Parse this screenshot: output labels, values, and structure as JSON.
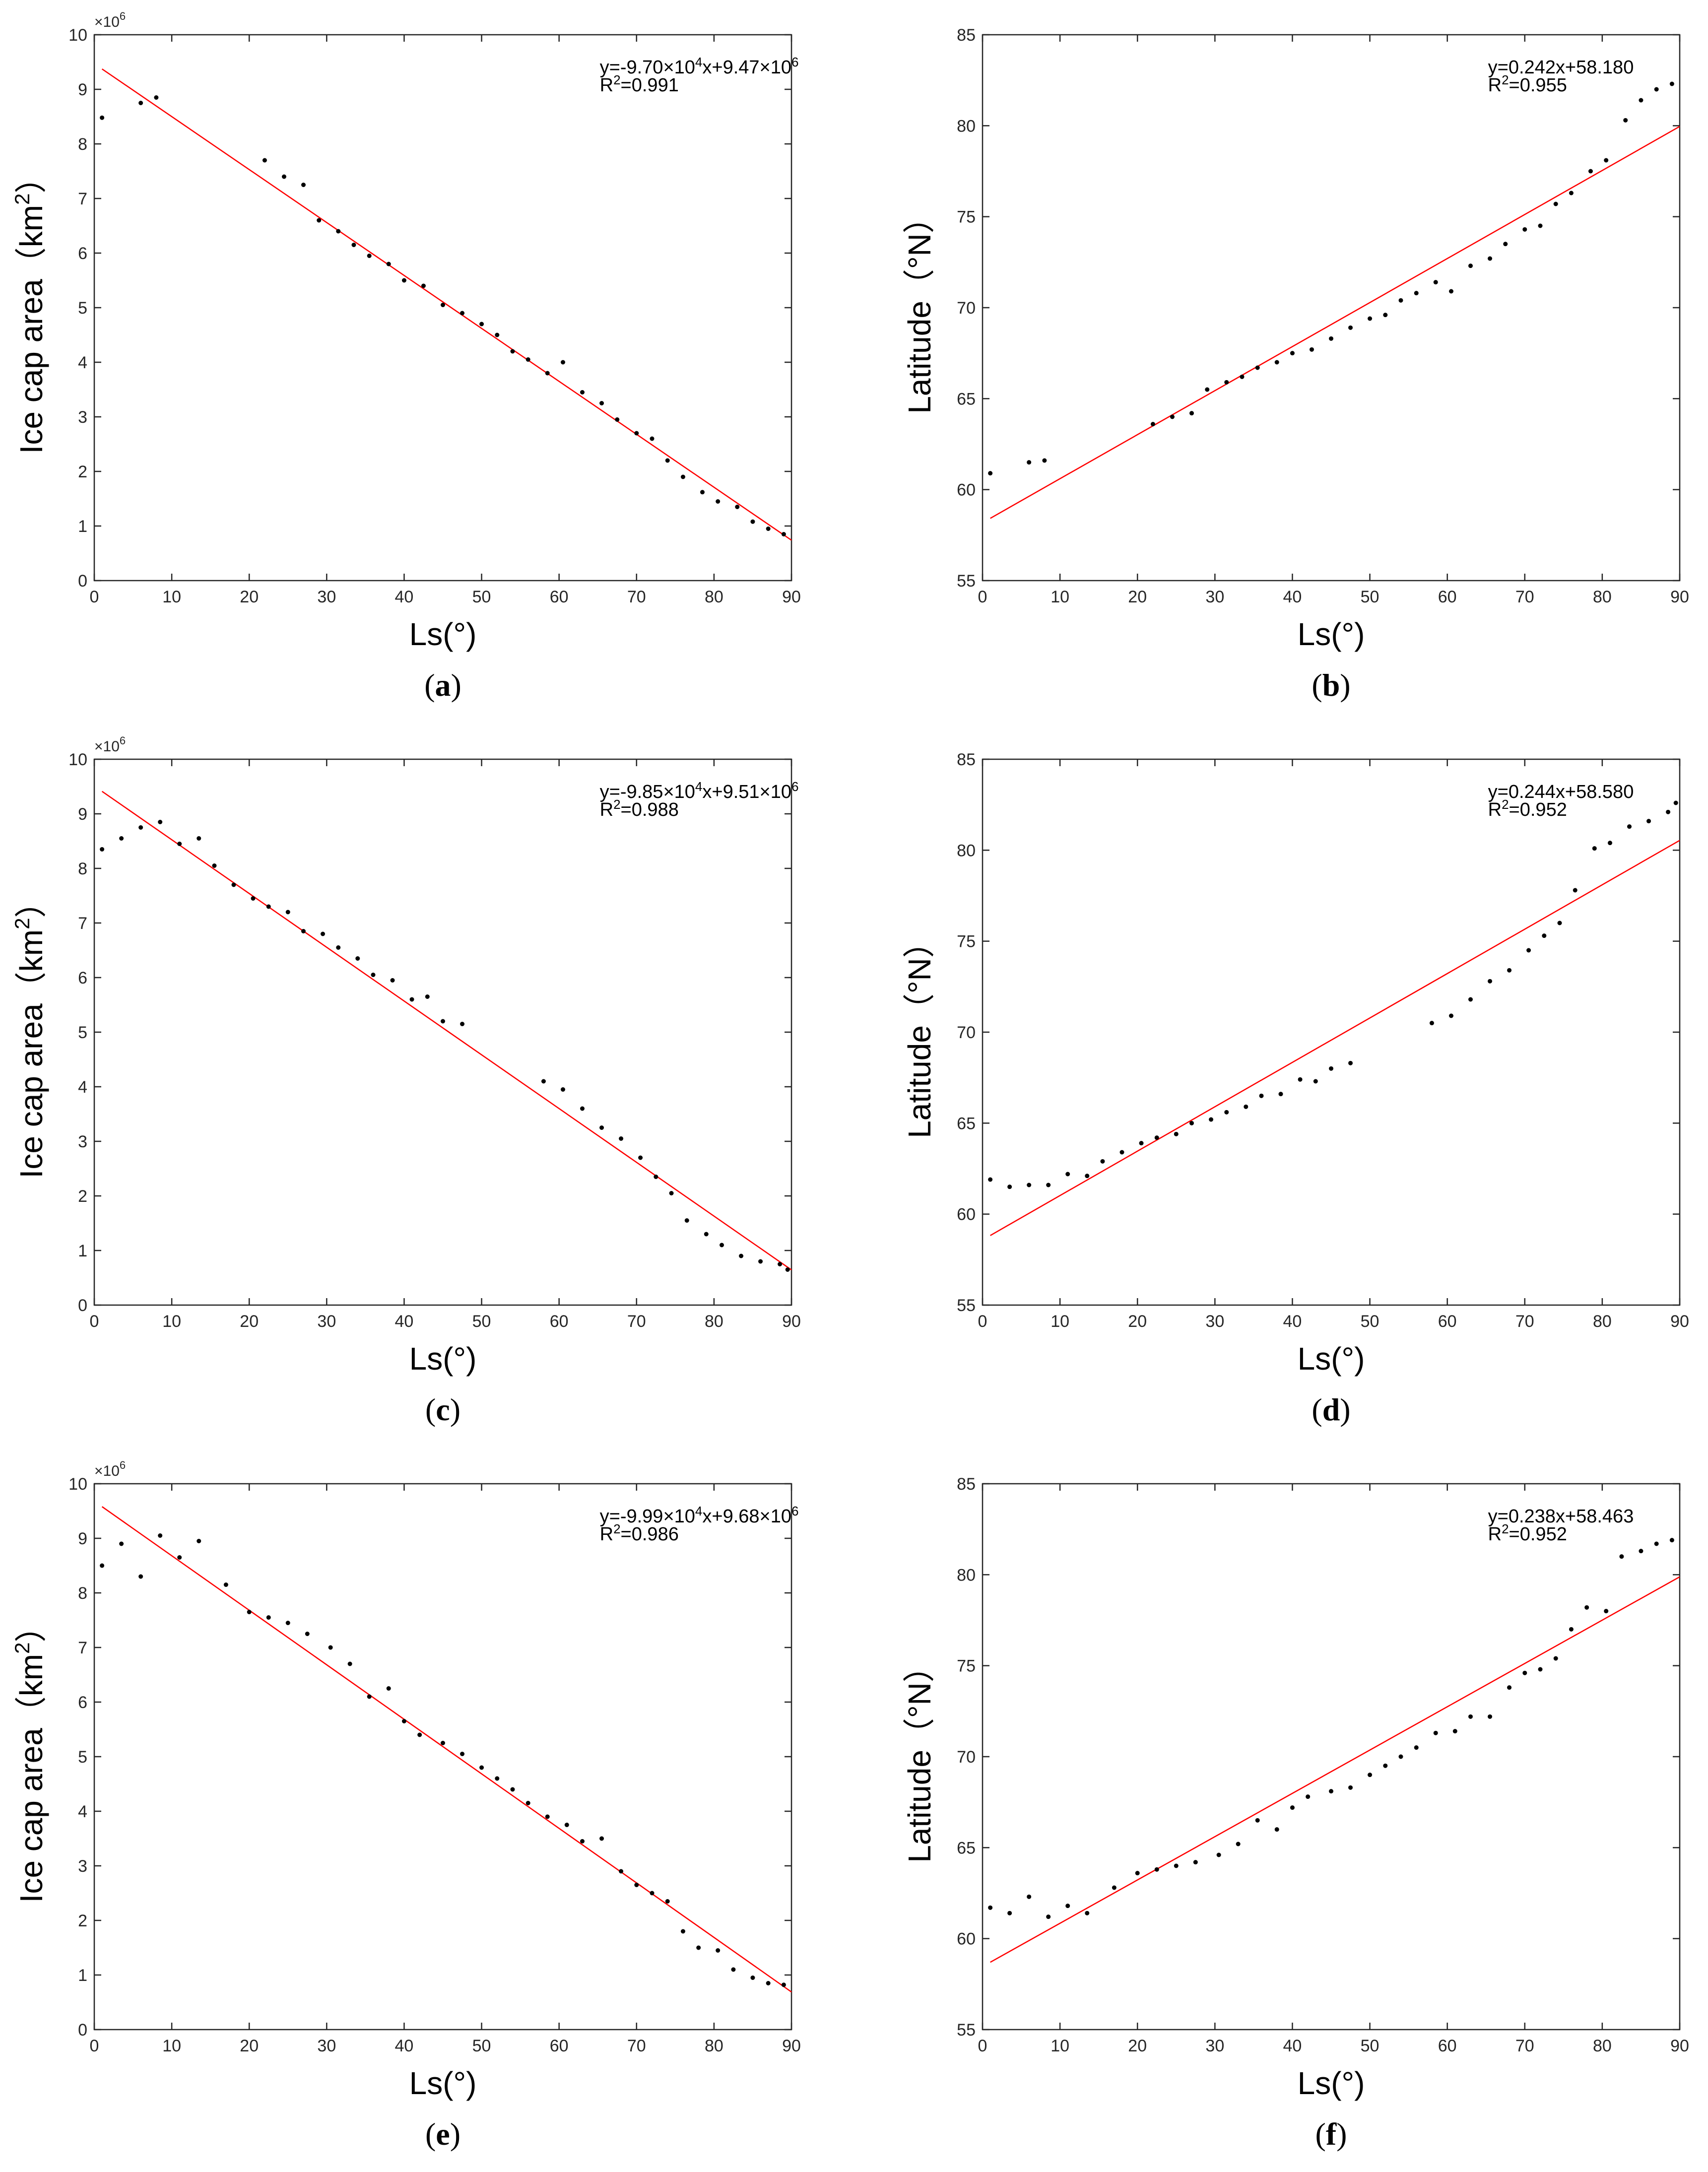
{
  "colors": {
    "fit_line": "#ff0000",
    "points": "#000000",
    "axes": "#262626"
  },
  "chart_data": [
    {
      "type": "scatter",
      "panel": "a",
      "caption": "(a)",
      "caption_open": "(",
      "caption_letter": "a",
      "caption_close": ")",
      "xlabel": "Ls(°)",
      "ylabel": "Ice cap area（km²）",
      "ylabel_main": "Ice cap area（km",
      "ylabel_sup": "2",
      "ylabel_end": "）",
      "xlim": [
        0,
        90
      ],
      "ylim": [
        0,
        10
      ],
      "xticks": [
        0,
        10,
        20,
        30,
        40,
        50,
        60,
        70,
        80,
        90
      ],
      "yticks": [
        0,
        1,
        2,
        3,
        4,
        5,
        6,
        7,
        8,
        9,
        10
      ],
      "y_multiplier": "×10⁶",
      "y_multiplier_base": "×10",
      "y_multiplier_exp": "6",
      "equation": "y=-9.70×10⁴x+9.47×10⁶",
      "eq_line1_parts": [
        "y=-9.70",
        "×",
        "10",
        "4",
        "x+9.47",
        "×",
        "10",
        "6"
      ],
      "r_squared": "R²=0.991",
      "r2_parts": [
        "R",
        "2",
        "=0.991"
      ],
      "fit": {
        "slope": -0.097,
        "intercept": 9.47
      },
      "x": [
        1,
        6,
        8,
        22,
        24.5,
        27,
        29,
        31.5,
        33.5,
        35.5,
        38,
        40,
        42.5,
        45,
        47.5,
        50,
        52,
        54,
        56,
        58.5,
        60.5,
        63,
        65.5,
        67.5,
        70,
        72,
        74,
        76,
        78.5,
        80.5,
        83,
        85,
        87,
        89
      ],
      "y": [
        8.48,
        8.75,
        8.85,
        7.7,
        7.4,
        7.25,
        6.6,
        6.4,
        6.15,
        5.95,
        5.8,
        5.5,
        5.4,
        5.05,
        4.9,
        4.7,
        4.5,
        4.2,
        4.05,
        3.8,
        4.0,
        3.45,
        3.25,
        2.95,
        2.7,
        2.6,
        2.2,
        1.9,
        1.62,
        1.45,
        1.35,
        1.08,
        0.95,
        0.85
      ]
    },
    {
      "type": "scatter",
      "panel": "b",
      "caption": "(b)",
      "caption_open": "(",
      "caption_letter": "b",
      "caption_close": ")",
      "xlabel": "Ls(°)",
      "ylabel": "Latitude（°N）",
      "xlim": [
        0,
        90
      ],
      "ylim": [
        55,
        85
      ],
      "xticks": [
        0,
        10,
        20,
        30,
        40,
        50,
        60,
        70,
        80,
        90
      ],
      "yticks": [
        55,
        60,
        65,
        70,
        75,
        80,
        85
      ],
      "equation": "y=0.242x+58.180",
      "r_squared": "R²=0.955",
      "r2_parts": [
        "R",
        "2",
        "=0.955"
      ],
      "fit": {
        "slope": 0.242,
        "intercept": 58.18
      },
      "x": [
        1,
        6,
        8,
        22,
        24.5,
        27,
        29,
        31.5,
        33.5,
        35.5,
        38,
        40,
        42.5,
        45,
        47.5,
        50,
        52,
        54,
        56,
        58.5,
        60.5,
        63,
        65.5,
        67.5,
        70,
        72,
        74,
        76,
        78.5,
        80.5,
        83,
        85,
        87,
        89
      ],
      "y": [
        60.9,
        61.5,
        61.6,
        63.6,
        64.0,
        64.2,
        65.5,
        65.9,
        66.2,
        66.7,
        67.0,
        67.5,
        67.7,
        68.3,
        68.9,
        69.4,
        69.6,
        70.4,
        70.8,
        71.4,
        70.9,
        72.3,
        72.7,
        73.5,
        74.3,
        74.5,
        75.7,
        76.3,
        77.5,
        78.1,
        80.3,
        81.4,
        82.0,
        82.3
      ]
    },
    {
      "type": "scatter",
      "panel": "c",
      "caption": "(c)",
      "caption_open": "(",
      "caption_letter": "c",
      "caption_close": ")",
      "xlabel": "Ls(°)",
      "ylabel": "Ice cap area（km²）",
      "ylabel_main": "Ice cap area（km",
      "ylabel_sup": "2",
      "ylabel_end": "）",
      "xlim": [
        0,
        90
      ],
      "ylim": [
        0,
        10
      ],
      "xticks": [
        0,
        10,
        20,
        30,
        40,
        50,
        60,
        70,
        80,
        90
      ],
      "yticks": [
        0,
        1,
        2,
        3,
        4,
        5,
        6,
        7,
        8,
        9,
        10
      ],
      "y_multiplier": "×10⁶",
      "y_multiplier_base": "×10",
      "y_multiplier_exp": "6",
      "equation": "y=-9.85×10⁴x+9.51×10⁶",
      "eq_line1_parts": [
        "y=-9.85",
        "×",
        "10",
        "4",
        "x+9.51",
        "×",
        "10",
        "6"
      ],
      "r_squared": "R²=0.988",
      "r2_parts": [
        "R",
        "2",
        "=0.988"
      ],
      "fit": {
        "slope": -0.0985,
        "intercept": 9.51
      },
      "x": [
        1,
        3.5,
        6,
        8.5,
        11,
        13.5,
        15.5,
        18,
        20.5,
        22.5,
        25,
        27,
        29.5,
        31.5,
        34,
        36,
        38.5,
        41,
        43,
        45,
        47.5,
        58,
        60.5,
        63,
        65.5,
        68,
        70.5,
        72.5,
        74.5,
        76.5,
        79,
        81,
        83.5,
        86,
        88.5,
        89.5
      ],
      "y": [
        8.35,
        8.55,
        8.75,
        8.85,
        8.45,
        8.55,
        8.05,
        7.7,
        7.45,
        7.3,
        7.2,
        6.85,
        6.8,
        6.55,
        6.35,
        6.05,
        5.95,
        5.6,
        5.65,
        5.2,
        5.15,
        4.1,
        3.95,
        3.6,
        3.25,
        3.05,
        2.7,
        2.35,
        2.05,
        1.55,
        1.3,
        1.1,
        0.9,
        0.8,
        0.75,
        0.65
      ]
    },
    {
      "type": "scatter",
      "panel": "d",
      "caption": "(d)",
      "caption_open": "(",
      "caption_letter": "d",
      "caption_close": ")",
      "xlabel": "Ls(°)",
      "ylabel": "Latitude（°N）",
      "xlim": [
        0,
        90
      ],
      "ylim": [
        55,
        85
      ],
      "xticks": [
        0,
        10,
        20,
        30,
        40,
        50,
        60,
        70,
        80,
        90
      ],
      "yticks": [
        55,
        60,
        65,
        70,
        75,
        80,
        85
      ],
      "equation": "y=0.244x+58.580",
      "r_squared": "R²=0.952",
      "r2_parts": [
        "R",
        "2",
        "=0.952"
      ],
      "fit": {
        "slope": 0.244,
        "intercept": 58.58
      },
      "x": [
        1,
        3.5,
        6,
        8.5,
        11,
        13.5,
        15.5,
        18,
        20.5,
        22.5,
        25,
        27,
        29.5,
        31.5,
        34,
        36,
        38.5,
        41,
        43,
        45,
        47.5,
        58,
        60.5,
        63,
        65.5,
        68,
        70.5,
        72.5,
        74.5,
        76.5,
        79,
        81,
        83.5,
        86,
        88.5,
        89.5
      ],
      "y": [
        61.9,
        61.5,
        61.6,
        61.6,
        62.2,
        62.1,
        62.9,
        63.4,
        63.9,
        64.2,
        64.4,
        65.0,
        65.2,
        65.6,
        65.9,
        66.5,
        66.6,
        67.4,
        67.3,
        68.0,
        68.3,
        70.5,
        70.9,
        71.8,
        72.8,
        73.4,
        74.5,
        75.3,
        76.0,
        77.8,
        80.1,
        80.4,
        81.3,
        81.6,
        82.1,
        82.6
      ]
    },
    {
      "type": "scatter",
      "panel": "e",
      "caption": "(e)",
      "caption_open": "(",
      "caption_letter": "e",
      "caption_close": ")",
      "xlabel": "Ls(°)",
      "ylabel": "Ice cap area（km²）",
      "ylabel_main": "Ice cap area（km",
      "ylabel_sup": "2",
      "ylabel_end": "）",
      "xlim": [
        0,
        90
      ],
      "ylim": [
        0,
        10
      ],
      "xticks": [
        0,
        10,
        20,
        30,
        40,
        50,
        60,
        70,
        80,
        90
      ],
      "yticks": [
        0,
        1,
        2,
        3,
        4,
        5,
        6,
        7,
        8,
        9,
        10
      ],
      "y_multiplier": "×10⁶",
      "y_multiplier_base": "×10",
      "y_multiplier_exp": "6",
      "equation": "y=-9.99×10⁴x+9.68×10⁶",
      "eq_line1_parts": [
        "y=-9.99",
        "×",
        "10",
        "4",
        "x+9.68",
        "×",
        "10",
        "6"
      ],
      "r_squared": "R²=0.986",
      "r2_parts": [
        "R",
        "2",
        "=0.986"
      ],
      "fit": {
        "slope": -0.0999,
        "intercept": 9.68
      },
      "x": [
        1,
        3.5,
        6,
        8.5,
        11,
        13.5,
        17,
        20,
        22.5,
        25,
        27.5,
        30.5,
        33,
        35.5,
        38,
        40,
        42,
        45,
        47.5,
        50,
        52,
        54,
        56,
        58.5,
        61,
        63,
        65.5,
        68,
        70,
        72,
        74,
        76,
        78,
        80.5,
        82.5,
        85,
        87,
        89
      ],
      "y": [
        8.5,
        8.9,
        8.3,
        9.05,
        8.65,
        8.95,
        8.15,
        7.65,
        7.55,
        7.45,
        7.25,
        7.0,
        6.7,
        6.1,
        6.25,
        5.65,
        5.4,
        5.25,
        5.05,
        4.8,
        4.6,
        4.4,
        4.15,
        3.9,
        3.75,
        3.45,
        3.5,
        2.9,
        2.65,
        2.5,
        2.35,
        1.8,
        1.5,
        1.45,
        1.1,
        0.95,
        0.85,
        0.82
      ]
    },
    {
      "type": "scatter",
      "panel": "f",
      "caption": "(f)",
      "caption_open": "(",
      "caption_letter": "f",
      "caption_close": ")",
      "xlabel": "Ls(°)",
      "ylabel": "Latitude（°N）",
      "xlim": [
        0,
        90
      ],
      "ylim": [
        55,
        85
      ],
      "xticks": [
        0,
        10,
        20,
        30,
        40,
        50,
        60,
        70,
        80,
        90
      ],
      "yticks": [
        55,
        60,
        65,
        70,
        75,
        80,
        85
      ],
      "equation": "y=0.238x+58.463",
      "r_squared": "R²=0.952",
      "r2_parts": [
        "R",
        "2",
        "=0.952"
      ],
      "fit": {
        "slope": 0.238,
        "intercept": 58.463
      },
      "x": [
        1,
        3.5,
        6,
        8.5,
        11,
        13.5,
        17,
        20,
        22.5,
        25,
        27.5,
        30.5,
        33,
        35.5,
        38,
        40,
        42,
        45,
        47.5,
        50,
        52,
        54,
        56,
        58.5,
        61,
        63,
        65.5,
        68,
        70,
        72,
        74,
        76,
        78,
        80.5,
        82.5,
        85,
        87,
        89
      ],
      "y": [
        61.7,
        61.4,
        62.3,
        61.2,
        61.8,
        61.4,
        62.8,
        63.6,
        63.8,
        64.0,
        64.2,
        64.6,
        65.2,
        66.5,
        66.0,
        67.2,
        67.8,
        68.1,
        68.3,
        69.0,
        69.5,
        70.0,
        70.5,
        71.3,
        71.4,
        72.2,
        72.2,
        73.8,
        74.6,
        74.8,
        75.4,
        77.0,
        78.2,
        78.0,
        81.0,
        81.3,
        81.7,
        81.9
      ]
    }
  ]
}
